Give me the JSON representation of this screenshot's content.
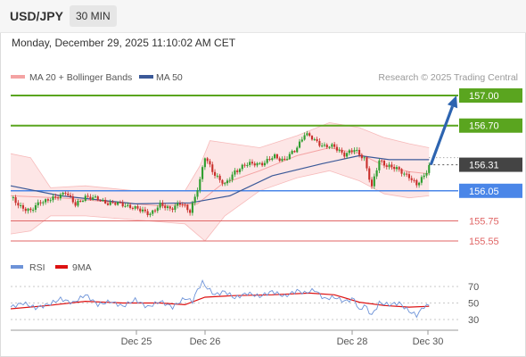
{
  "header": {
    "pair": "USD/JPY",
    "timeframe": "30 MIN",
    "datetime": "Monday, December 29, 2025 11:10:02 AM CET"
  },
  "colors": {
    "bollinger": "#f4a3a3",
    "bollinger_fill": "#fde6e6",
    "ma50": "#3b5998",
    "candle_up": "#2f9e2f",
    "candle_down": "#c9302c",
    "resistance": "#5aa51f",
    "pivot": "#4a86e8",
    "support": "#e06666",
    "current": "#444444",
    "arrow": "#2d64b0",
    "rsi": "#6d93d8",
    "rsi_ma": "#dd1111"
  },
  "chart_data": [
    {
      "type": "candlestick",
      "legend": [
        {
          "label": "MA 20 + Bollinger Bands",
          "color": "#f4a3a3"
        },
        {
          "label": "MA 50",
          "color": "#3b5998"
        }
      ],
      "watermark": "Research © 2025 Trading Central",
      "ylim": [
        155.48,
        157.08
      ],
      "x_ticks": [
        "Dec 25",
        "Dec 26",
        "Dec 28",
        "Dec 30"
      ],
      "levels": [
        {
          "value": 157.0,
          "label": "157.00",
          "kind": "resistance"
        },
        {
          "value": 156.7,
          "label": "156.70",
          "kind": "resistance"
        },
        {
          "value": 156.31,
          "label": "156.31",
          "kind": "current"
        },
        {
          "value": 156.05,
          "label": "156.05",
          "kind": "pivot"
        },
        {
          "value": 155.75,
          "label": "155.75",
          "kind": "support"
        },
        {
          "value": 155.55,
          "label": "155.55",
          "kind": "support"
        }
      ],
      "anchors": [
        [
          0,
          155.98
        ],
        [
          4,
          155.9
        ],
        [
          8,
          155.84
        ],
        [
          12,
          155.95
        ],
        [
          18,
          155.97
        ],
        [
          22,
          156.05
        ],
        [
          26,
          155.9
        ],
        [
          30,
          156.0
        ],
        [
          36,
          155.95
        ],
        [
          42,
          155.92
        ],
        [
          48,
          155.9
        ],
        [
          52,
          155.85
        ],
        [
          56,
          155.83
        ],
        [
          60,
          155.9
        ],
        [
          64,
          155.88
        ],
        [
          68,
          155.92
        ],
        [
          72,
          155.85
        ],
        [
          76,
          156.15
        ],
        [
          78,
          156.38
        ],
        [
          82,
          156.22
        ],
        [
          86,
          156.1
        ],
        [
          90,
          156.25
        ],
        [
          94,
          156.3
        ],
        [
          98,
          156.33
        ],
        [
          102,
          156.32
        ],
        [
          106,
          156.4
        ],
        [
          110,
          156.35
        ],
        [
          114,
          156.45
        ],
        [
          118,
          156.62
        ],
        [
          122,
          156.55
        ],
        [
          126,
          156.5
        ],
        [
          130,
          156.48
        ],
        [
          134,
          156.42
        ],
        [
          138,
          156.45
        ],
        [
          142,
          156.38
        ],
        [
          145,
          156.08
        ],
        [
          148,
          156.35
        ],
        [
          152,
          156.3
        ],
        [
          156,
          156.25
        ],
        [
          160,
          156.2
        ],
        [
          163,
          156.1
        ],
        [
          166,
          156.2
        ],
        [
          168,
          156.31
        ]
      ],
      "ma50": [
        [
          0,
          156.1
        ],
        [
          20,
          156.0
        ],
        [
          50,
          155.92
        ],
        [
          72,
          155.93
        ],
        [
          88,
          156.0
        ],
        [
          105,
          156.2
        ],
        [
          125,
          156.32
        ],
        [
          140,
          156.4
        ],
        [
          152,
          156.36
        ],
        [
          168,
          156.36
        ]
      ],
      "bb_mid": [
        [
          0,
          156.0
        ],
        [
          20,
          155.98
        ],
        [
          40,
          155.94
        ],
        [
          60,
          155.9
        ],
        [
          75,
          155.92
        ],
        [
          85,
          156.12
        ],
        [
          100,
          156.25
        ],
        [
          115,
          156.4
        ],
        [
          128,
          156.48
        ],
        [
          140,
          156.42
        ],
        [
          150,
          156.3
        ],
        [
          160,
          156.24
        ],
        [
          168,
          156.22
        ]
      ],
      "bb_upper": [
        [
          0,
          156.42
        ],
        [
          8,
          156.38
        ],
        [
          16,
          156.08
        ],
        [
          30,
          156.1
        ],
        [
          50,
          156.05
        ],
        [
          70,
          156.05
        ],
        [
          76,
          156.3
        ],
        [
          80,
          156.55
        ],
        [
          100,
          156.48
        ],
        [
          115,
          156.6
        ],
        [
          128,
          156.73
        ],
        [
          140,
          156.68
        ],
        [
          150,
          156.58
        ],
        [
          160,
          156.52
        ],
        [
          168,
          156.48
        ]
      ],
      "bb_lower": [
        [
          0,
          155.62
        ],
        [
          8,
          155.65
        ],
        [
          16,
          155.8
        ],
        [
          30,
          155.8
        ],
        [
          50,
          155.76
        ],
        [
          70,
          155.72
        ],
        [
          78,
          155.55
        ],
        [
          86,
          155.8
        ],
        [
          100,
          156.05
        ],
        [
          115,
          156.18
        ],
        [
          128,
          156.25
        ],
        [
          140,
          156.15
        ],
        [
          150,
          156.02
        ],
        [
          160,
          155.98
        ],
        [
          168,
          156.0
        ]
      ],
      "forecast": {
        "from": [
          168,
          156.31
        ],
        "to": [
          179,
          157.0
        ]
      }
    },
    {
      "type": "line",
      "legend": [
        {
          "label": "RSI",
          "color": "#6d93d8"
        },
        {
          "label": "9MA",
          "color": "#dd1111"
        }
      ],
      "ylim": [
        25,
        80
      ],
      "y_ticks": [
        "70",
        "50",
        "30"
      ],
      "series": [
        {
          "name": "RSI",
          "values": [
            [
              0,
              45
            ],
            [
              5,
              50
            ],
            [
              10,
              44
            ],
            [
              15,
              48
            ],
            [
              20,
              55
            ],
            [
              25,
              50
            ],
            [
              30,
              60
            ],
            [
              35,
              48
            ],
            [
              40,
              52
            ],
            [
              45,
              46
            ],
            [
              50,
              54
            ],
            [
              55,
              45
            ],
            [
              60,
              52
            ],
            [
              65,
              45
            ],
            [
              70,
              56
            ],
            [
              73,
              52
            ],
            [
              75,
              66
            ],
            [
              77,
              75
            ],
            [
              79,
              68
            ],
            [
              82,
              60
            ],
            [
              86,
              64
            ],
            [
              90,
              56
            ],
            [
              95,
              62
            ],
            [
              100,
              58
            ],
            [
              105,
              64
            ],
            [
              110,
              58
            ],
            [
              115,
              65
            ],
            [
              118,
              62
            ],
            [
              122,
              66
            ],
            [
              126,
              55
            ],
            [
              130,
              57
            ],
            [
              134,
              52
            ],
            [
              138,
              55
            ],
            [
              140,
              40
            ],
            [
              142,
              48
            ],
            [
              145,
              35
            ],
            [
              148,
              50
            ],
            [
              152,
              48
            ],
            [
              156,
              50
            ],
            [
              160,
              40
            ],
            [
              163,
              35
            ],
            [
              166,
              46
            ],
            [
              168,
              47
            ]
          ]
        },
        {
          "name": "9MA",
          "values": [
            [
              0,
              43
            ],
            [
              15,
              47
            ],
            [
              30,
              52
            ],
            [
              45,
              50
            ],
            [
              60,
              50
            ],
            [
              70,
              48
            ],
            [
              78,
              57
            ],
            [
              90,
              59
            ],
            [
              105,
              60
            ],
            [
              120,
              62
            ],
            [
              130,
              60
            ],
            [
              140,
              51
            ],
            [
              150,
              47
            ],
            [
              160,
              45
            ],
            [
              168,
              46
            ]
          ]
        }
      ]
    }
  ]
}
